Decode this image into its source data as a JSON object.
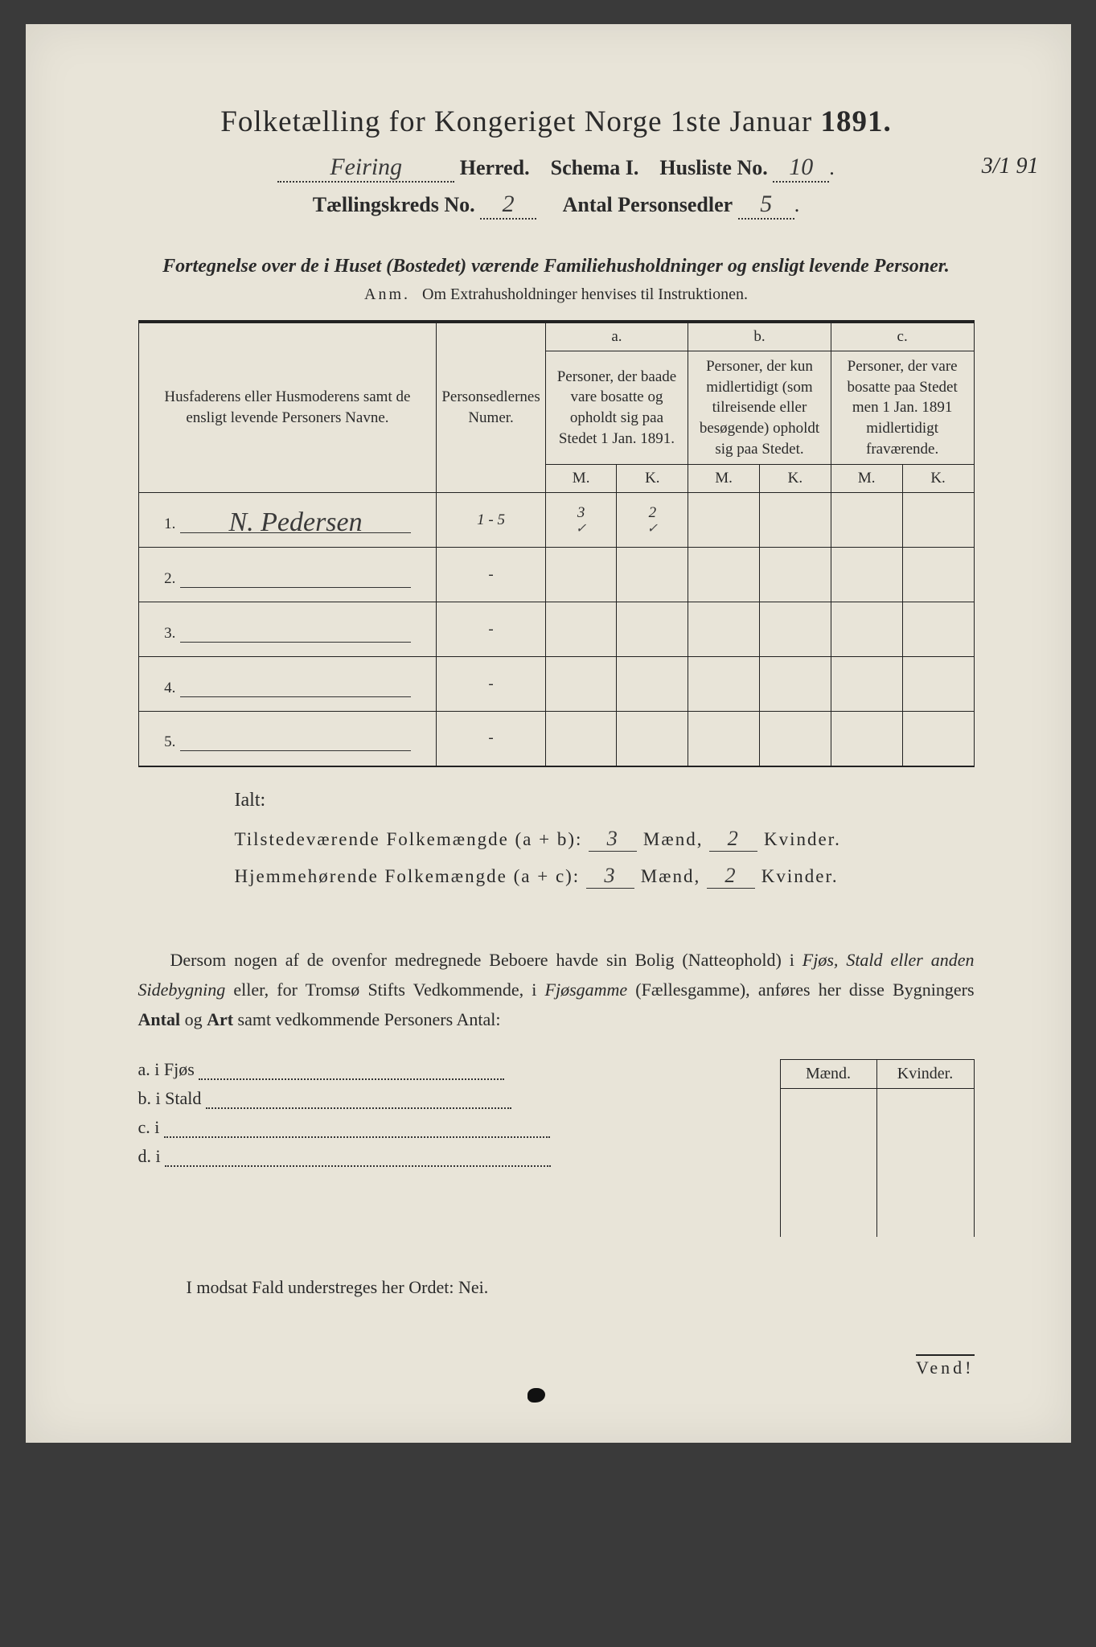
{
  "colors": {
    "page_bg": "#e8e4d8",
    "outer_bg": "#3a3a3a",
    "ink": "#2a2a2a",
    "rule": "#222222"
  },
  "title": {
    "main": "Folketælling for Kongeriget Norge 1ste Januar",
    "year": "1891."
  },
  "header": {
    "herred_value": "Feiring",
    "herred_label": "Herred.",
    "schema_label": "Schema I.",
    "husliste_label": "Husliste No.",
    "husliste_value": "10",
    "margin_date": "3/1 91",
    "kreds_label": "Tællingskreds No.",
    "kreds_value": "2",
    "antal_label": "Antal Personsedler",
    "antal_value": "5"
  },
  "intro": {
    "line": "Fortegnelse over de i Huset (Bostedet) værende Familiehusholdninger og ensligt levende Personer.",
    "anm_label": "Anm.",
    "anm_text": "Om Extrahusholdninger henvises til Instruktionen."
  },
  "table": {
    "col1": "Husfaderens eller Husmoderens samt de ensligt levende Personers Navne.",
    "col2": "Personsedlernes Numer.",
    "a_label": "a.",
    "a_desc": "Personer, der baade vare bosatte og opholdt sig paa Stedet 1 Jan. 1891.",
    "b_label": "b.",
    "b_desc": "Personer, der kun midlertidigt (som tilreisende eller besøgende) opholdt sig paa Stedet.",
    "c_label": "c.",
    "c_desc": "Personer, der vare bosatte paa Stedet men 1 Jan. 1891 midlertidigt fraværende.",
    "m": "M.",
    "k": "K.",
    "rows": [
      {
        "n": "1.",
        "name": "N. Pedersen",
        "num": "1 - 5",
        "a_m": "3",
        "a_k": "2",
        "tick_m": "✓",
        "tick_k": "✓"
      },
      {
        "n": "2.",
        "name": "",
        "num": "-",
        "a_m": "",
        "a_k": ""
      },
      {
        "n": "3.",
        "name": "",
        "num": "-",
        "a_m": "",
        "a_k": ""
      },
      {
        "n": "4.",
        "name": "",
        "num": "-",
        "a_m": "",
        "a_k": ""
      },
      {
        "n": "5.",
        "name": "",
        "num": "-",
        "a_m": "",
        "a_k": ""
      }
    ]
  },
  "totals": {
    "ialt": "Ialt:",
    "line1_label": "Tilstedeværende Folkemængde (a + b):",
    "line2_label": "Hjemmehørende Folkemængde (a + c):",
    "maend": "Mænd,",
    "kvinder": "Kvinder.",
    "l1_m": "3",
    "l1_k": "2",
    "l2_m": "3",
    "l2_k": "2"
  },
  "para": {
    "text_pre": "Dersom nogen af de ovenfor medregnede Beboere havde sin Bolig (Natteophold) i ",
    "ital1": "Fjøs, Stald eller anden Sidebygning",
    "mid": " eller, for Tromsø Stifts Vedkommende, i ",
    "ital2": "Fjøsgamme",
    "paren": " (Fællesgamme), anføres her disse Bygningers ",
    "bold1": "Antal",
    "and": " og ",
    "bold2": "Art",
    "tail": " samt vedkommende Personers Antal:"
  },
  "side": {
    "maend": "Mænd.",
    "kvinder": "Kvinder.",
    "rows": [
      {
        "label": "a.",
        "i": "i",
        "text": "Fjøs"
      },
      {
        "label": "b.",
        "i": "i",
        "text": "Stald"
      },
      {
        "label": "c.",
        "i": "i",
        "text": ""
      },
      {
        "label": "d.",
        "i": "i",
        "text": ""
      }
    ]
  },
  "modsat": "I modsat Fald understreges her Ordet: Nei.",
  "vend": "Vend!"
}
